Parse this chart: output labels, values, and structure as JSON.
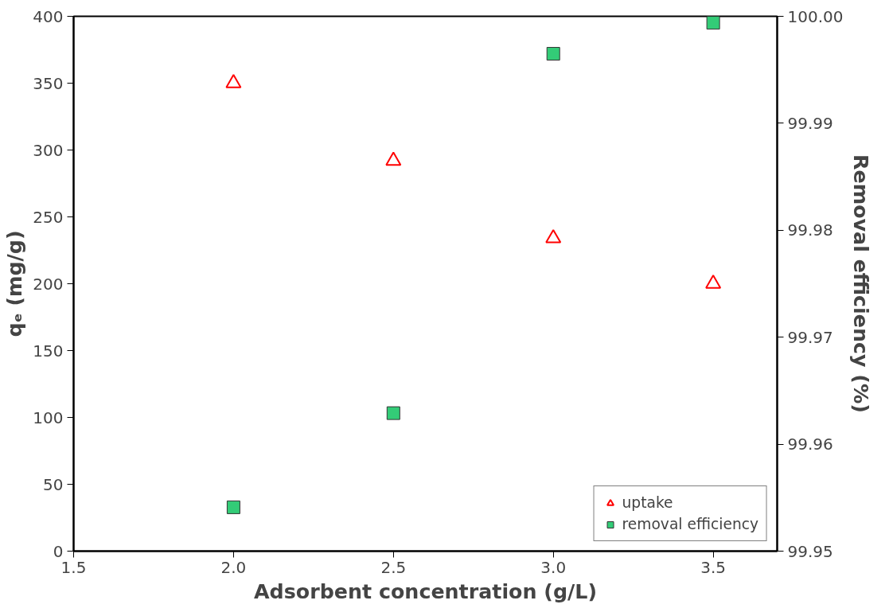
{
  "chart_data": {
    "type": "scatter",
    "xlabel": "Adsorbent concentration (g/L)",
    "ylabel": "qₑ (mg/g)",
    "y2label": "Removal efficiency (%)",
    "x": [
      2.0,
      2.5,
      3.0,
      3.5
    ],
    "series": [
      {
        "name": "uptake",
        "color": "#ff0000",
        "marker": "triangle",
        "values": [
          350,
          292,
          234,
          200
        ]
      },
      {
        "name": "removal efficiency",
        "color": "#33cc77",
        "marker": "square",
        "axis": "y2",
        "values": [
          99.9541,
          99.9629,
          99.9965,
          99.9994
        ]
      }
    ],
    "xlim": [
      1.5,
      3.7
    ],
    "xticks": [
      {
        "value": 1.5,
        "label": "1.5"
      },
      {
        "value": 2.0,
        "label": "2.0"
      },
      {
        "value": 2.5,
        "label": "2.5"
      },
      {
        "value": 3.0,
        "label": "3.0"
      },
      {
        "value": 3.5,
        "label": "3.5"
      }
    ],
    "ylim": [
      0,
      400
    ],
    "yticks": [
      0,
      50,
      100,
      150,
      200,
      250,
      300,
      350,
      400
    ],
    "y2lim": [
      99.95,
      100.0
    ],
    "y2ticks": [
      99.95,
      99.96,
      99.97,
      99.98,
      99.99,
      {
        "value": 100.0,
        "label": "100.00"
      }
    ],
    "grid": false,
    "legend": "bottom right"
  }
}
